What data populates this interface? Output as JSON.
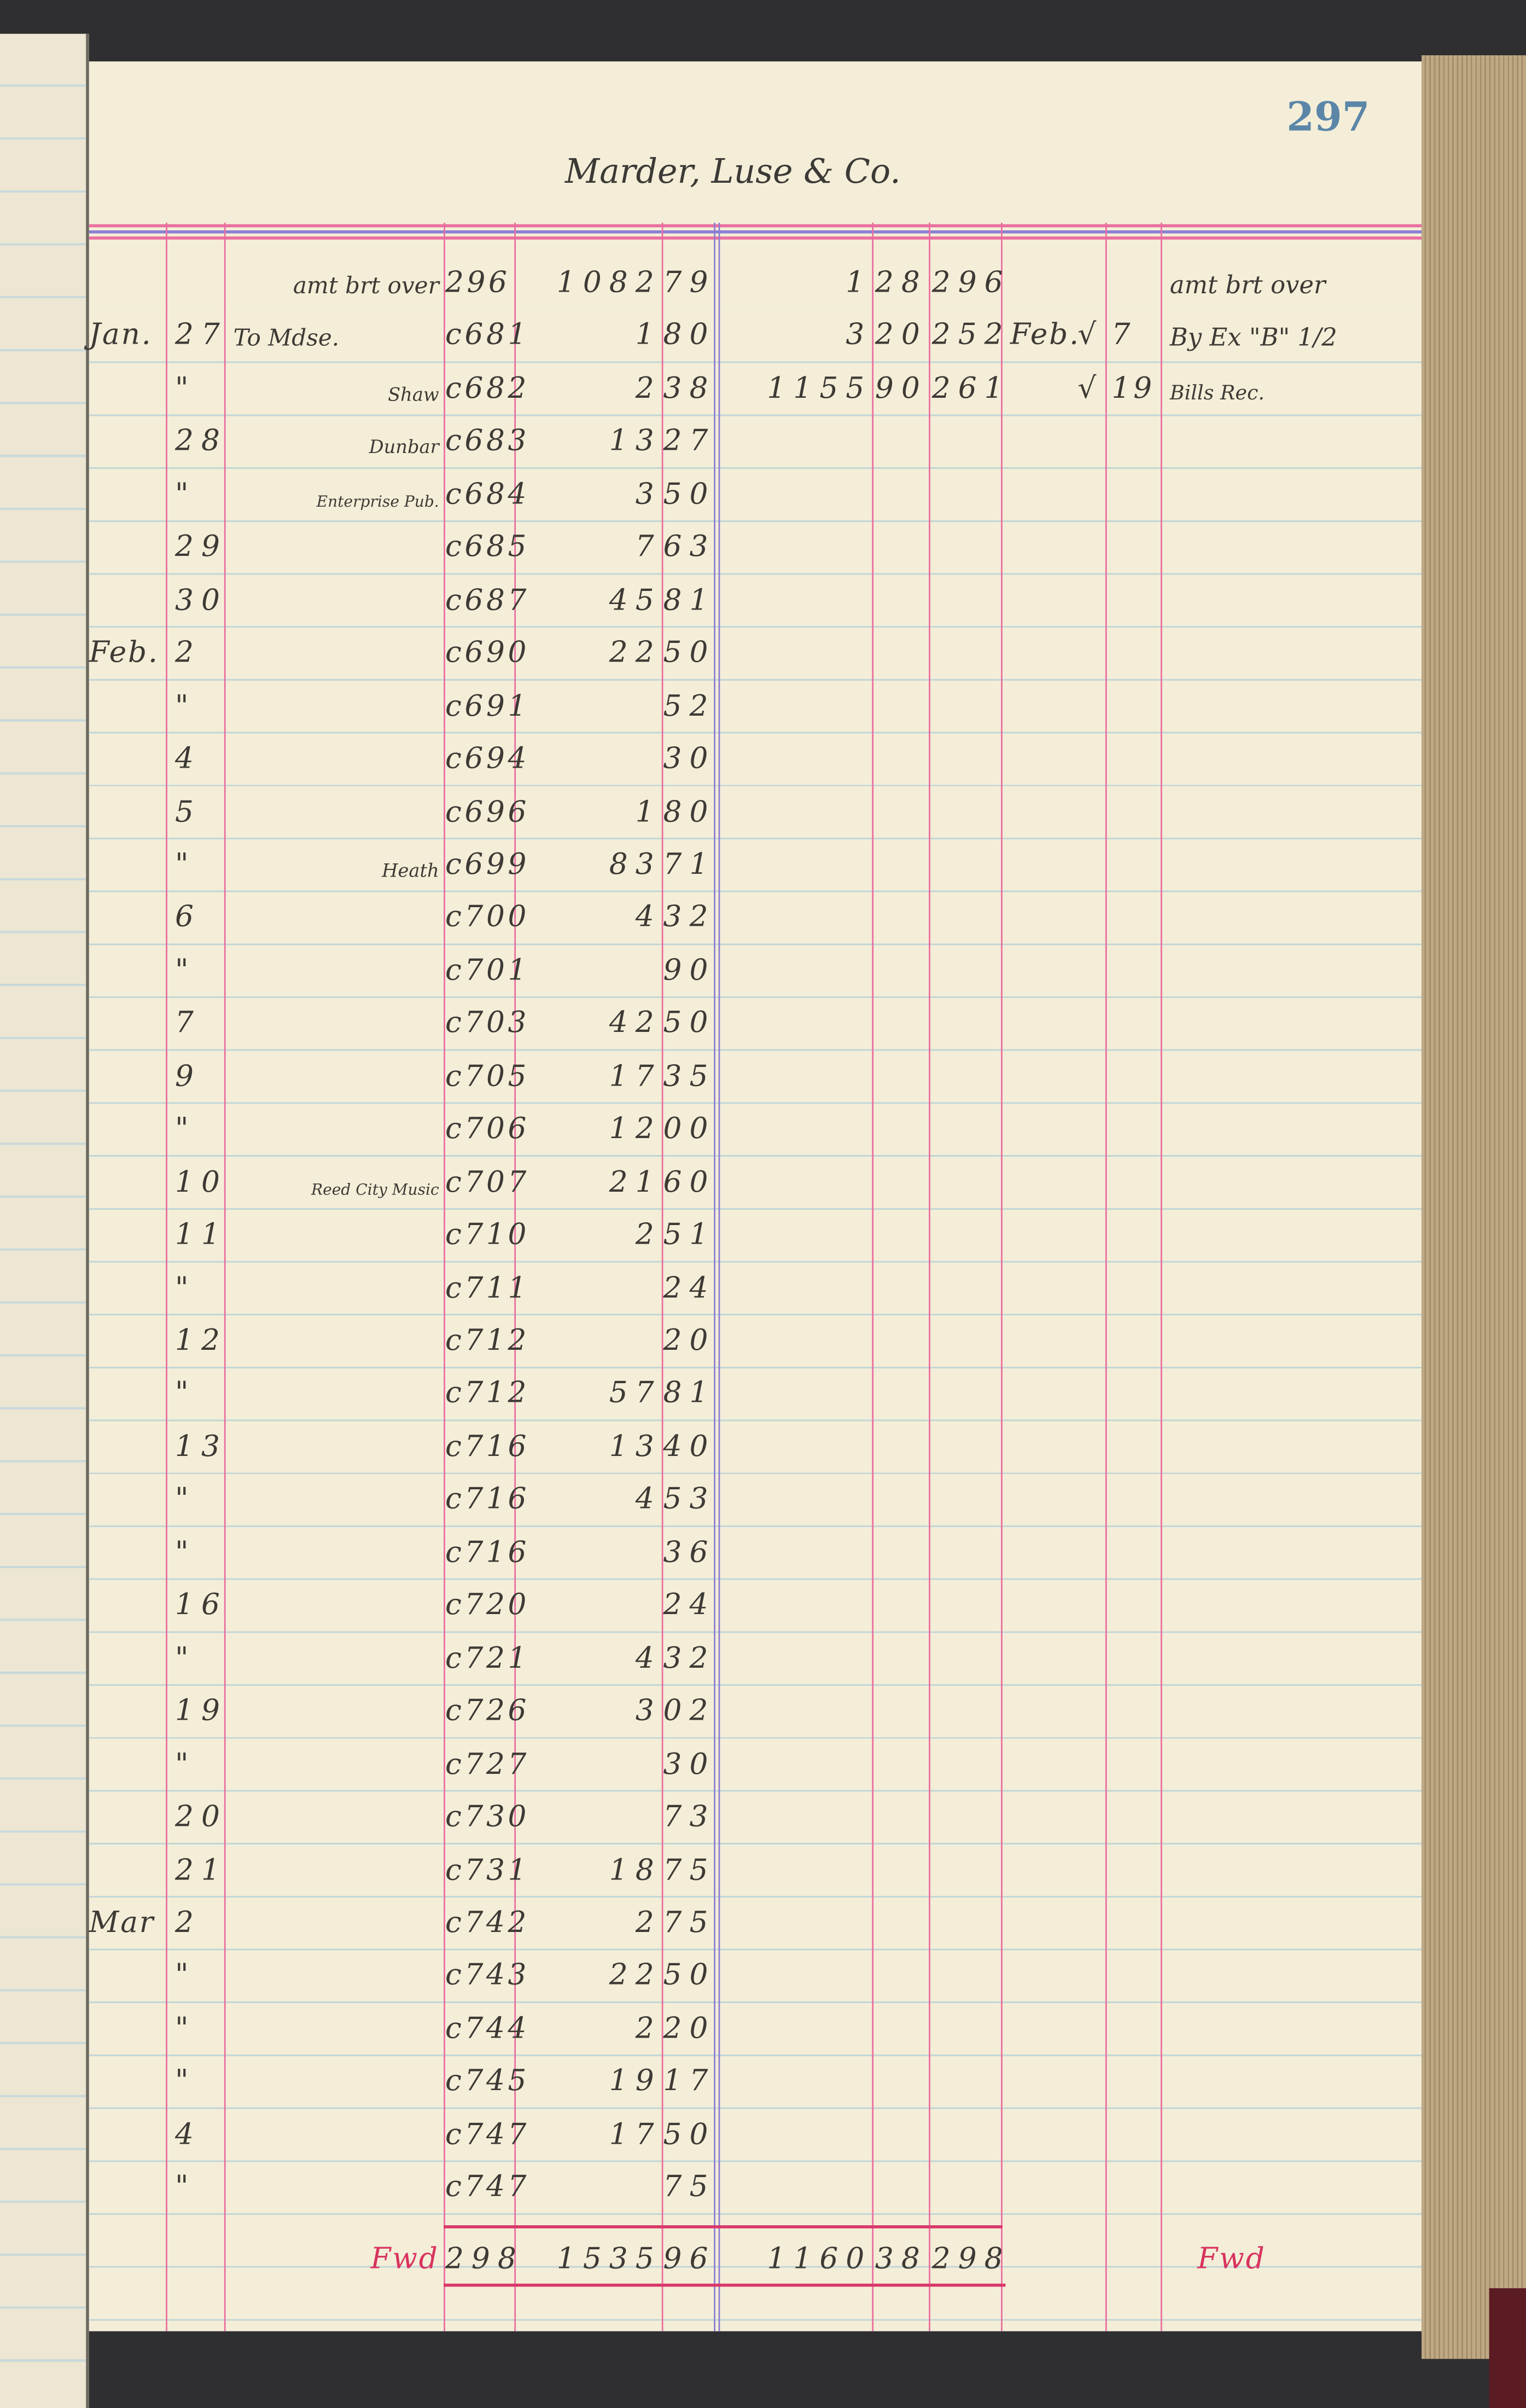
{
  "page_number": "297",
  "account_title": "Marder, Luse & Co.",
  "colors": {
    "paper": "#f4eed8",
    "rule_pink": "#ea6fa0",
    "rule_purple": "#8b7fd4",
    "rule_blue": "#c2d6d6",
    "page_number": "#5b86a8",
    "ink": "#3d3a35",
    "red_ink": "#d8335e"
  },
  "debit": {
    "rows": [
      {
        "month": "",
        "day": "",
        "description": "amt brt over",
        "folio": "296",
        "dollars": "1082",
        "cents": "79"
      },
      {
        "month": "Jan.",
        "day": "27",
        "description": "To Mdse.",
        "folio": "c681",
        "dollars": "1",
        "cents": "80"
      },
      {
        "month": "",
        "day": "\"",
        "description": "Shaw",
        "folio": "c682",
        "dollars": "2",
        "cents": "38"
      },
      {
        "month": "",
        "day": "28",
        "description": "Dunbar",
        "folio": "c683",
        "dollars": "13",
        "cents": "27"
      },
      {
        "month": "",
        "day": "\"",
        "description": "Enterprise Pub.",
        "folio": "c684",
        "dollars": "3",
        "cents": "50"
      },
      {
        "month": "",
        "day": "29",
        "description": "",
        "folio": "c685",
        "dollars": "7",
        "cents": "63"
      },
      {
        "month": "",
        "day": "30",
        "description": "",
        "folio": "c687",
        "dollars": "45",
        "cents": "81"
      },
      {
        "month": "Feb.",
        "day": "2",
        "description": "",
        "folio": "c690",
        "dollars": "22",
        "cents": "50"
      },
      {
        "month": "",
        "day": "\"",
        "description": "",
        "folio": "c691",
        "dollars": "",
        "cents": "52"
      },
      {
        "month": "",
        "day": "4",
        "description": "",
        "folio": "c694",
        "dollars": "",
        "cents": "30"
      },
      {
        "month": "",
        "day": "5",
        "description": "",
        "folio": "c696",
        "dollars": "1",
        "cents": "80"
      },
      {
        "month": "",
        "day": "\"",
        "description": "Heath",
        "folio": "c699",
        "dollars": "83",
        "cents": "71"
      },
      {
        "month": "",
        "day": "6",
        "description": "",
        "folio": "c700",
        "dollars": "4",
        "cents": "32"
      },
      {
        "month": "",
        "day": "\"",
        "description": "",
        "folio": "c701",
        "dollars": "",
        "cents": "90"
      },
      {
        "month": "",
        "day": "7",
        "description": "",
        "folio": "c703",
        "dollars": "42",
        "cents": "50"
      },
      {
        "month": "",
        "day": "9",
        "description": "",
        "folio": "c705",
        "dollars": "17",
        "cents": "35"
      },
      {
        "month": "",
        "day": "\"",
        "description": "",
        "folio": "c706",
        "dollars": "12",
        "cents": "00"
      },
      {
        "month": "",
        "day": "10",
        "description": "Reed City Music",
        "folio": "c707",
        "dollars": "21",
        "cents": "60"
      },
      {
        "month": "",
        "day": "11",
        "description": "",
        "folio": "c710",
        "dollars": "2",
        "cents": "51"
      },
      {
        "month": "",
        "day": "\"",
        "description": "",
        "folio": "c711",
        "dollars": "",
        "cents": "24"
      },
      {
        "month": "",
        "day": "12",
        "description": "",
        "folio": "c712",
        "dollars": "",
        "cents": "20"
      },
      {
        "month": "",
        "day": "\"",
        "description": "",
        "folio": "c712",
        "dollars": "57",
        "cents": "81"
      },
      {
        "month": "",
        "day": "13",
        "description": "",
        "folio": "c716",
        "dollars": "13",
        "cents": "40"
      },
      {
        "month": "",
        "day": "\"",
        "description": "",
        "folio": "c716",
        "dollars": "4",
        "cents": "53"
      },
      {
        "month": "",
        "day": "\"",
        "description": "",
        "folio": "c716",
        "dollars": "",
        "cents": "36"
      },
      {
        "month": "",
        "day": "16",
        "description": "",
        "folio": "c720",
        "dollars": "",
        "cents": "24"
      },
      {
        "month": "",
        "day": "\"",
        "description": "",
        "folio": "c721",
        "dollars": "4",
        "cents": "32"
      },
      {
        "month": "",
        "day": "19",
        "description": "",
        "folio": "c726",
        "dollars": "3",
        "cents": "02"
      },
      {
        "month": "",
        "day": "\"",
        "description": "",
        "folio": "c727",
        "dollars": "",
        "cents": "30"
      },
      {
        "month": "",
        "day": "20",
        "description": "",
        "folio": "c730",
        "dollars": "",
        "cents": "73"
      },
      {
        "month": "",
        "day": "21",
        "description": "",
        "folio": "c731",
        "dollars": "18",
        "cents": "75"
      },
      {
        "month": "Mar",
        "day": "2",
        "description": "",
        "folio": "c742",
        "dollars": "2",
        "cents": "75"
      },
      {
        "month": "",
        "day": "\"",
        "description": "",
        "folio": "c743",
        "dollars": "22",
        "cents": "50"
      },
      {
        "month": "",
        "day": "\"",
        "description": "",
        "folio": "c744",
        "dollars": "2",
        "cents": "20"
      },
      {
        "month": "",
        "day": "\"",
        "description": "",
        "folio": "c745",
        "dollars": "19",
        "cents": "17"
      },
      {
        "month": "",
        "day": "4",
        "description": "",
        "folio": "c747",
        "dollars": "17",
        "cents": "50"
      },
      {
        "month": "",
        "day": "\"",
        "description": "",
        "folio": "c747",
        "dollars": "",
        "cents": "75"
      }
    ],
    "total": {
      "label": "Fwd",
      "folio": "298",
      "dollars": "1535",
      "cents": "96"
    }
  },
  "credit": {
    "rows": [
      {
        "dollars": "1",
        "cents": "28",
        "folio": "296",
        "month": "",
        "day": "",
        "description": "amt brt over"
      },
      {
        "dollars": "3",
        "cents": "20",
        "folio": "252",
        "month": "Feb.",
        "day": "√ 7",
        "description": "By Ex \"B\" 1/2"
      },
      {
        "dollars": "1155",
        "cents": "90",
        "folio": "261",
        "month": "",
        "day": "√ 19",
        "description": "Bills Rec."
      }
    ],
    "total": {
      "dollars": "1160",
      "cents": "38",
      "folio": "298",
      "label": "Fwd"
    }
  }
}
